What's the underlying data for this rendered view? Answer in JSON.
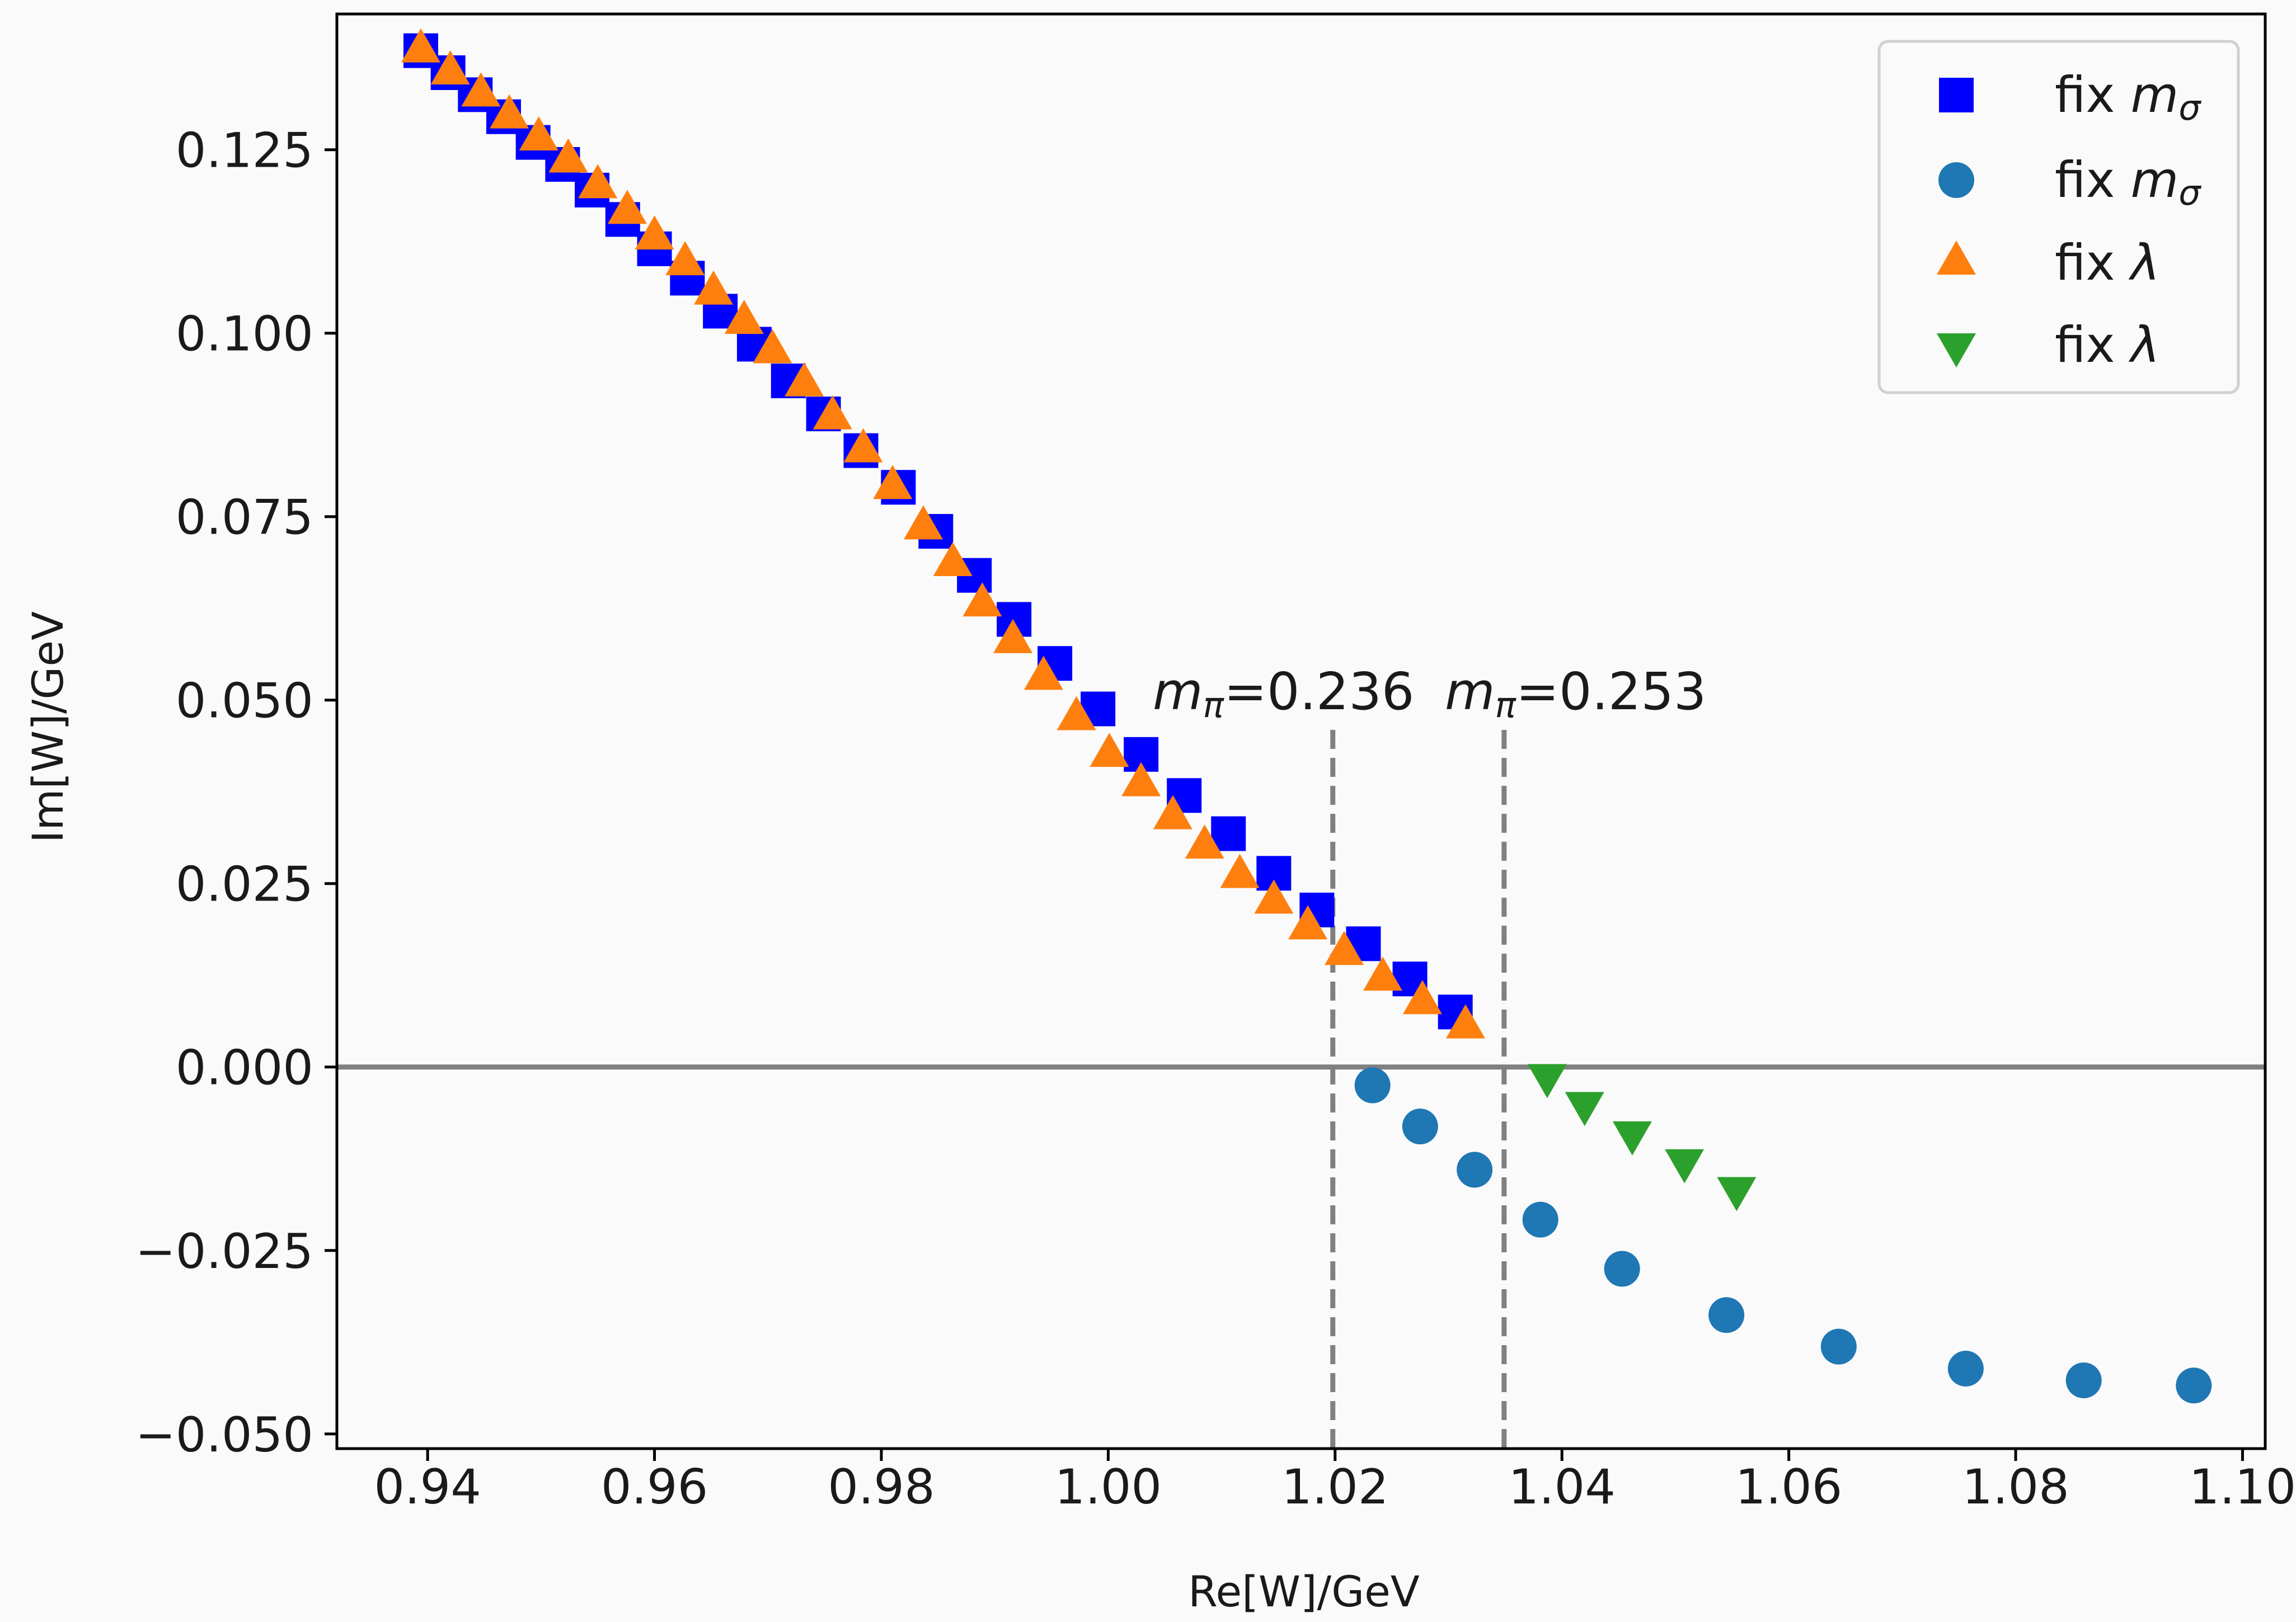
{
  "chart_data": {
    "type": "scatter",
    "xlabel": "Re[W]/GeV",
    "ylabel": "Im[W]/GeV",
    "xlim": [
      0.932,
      1.102
    ],
    "ylim": [
      -0.052,
      0.1435
    ],
    "xticks": [
      0.94,
      0.96,
      0.98,
      1.0,
      1.02,
      1.04,
      1.06,
      1.08,
      1.1
    ],
    "xtick_labels": [
      "0.94",
      "0.96",
      "0.98",
      "1.00",
      "1.02",
      "1.04",
      "1.06",
      "1.08",
      "1.10"
    ],
    "yticks": [
      0.125,
      0.1,
      0.075,
      0.05,
      0.025,
      0.0,
      -0.025,
      -0.05
    ],
    "ytick_labels": [
      "0.125",
      "0.100",
      "0.075",
      "0.050",
      "0.025",
      "0.000",
      "−0.025",
      "−0.050"
    ],
    "grid": false,
    "legend_position": "top-right",
    "hline": {
      "y": 0.0,
      "color": "#808080"
    },
    "vlines": [
      {
        "x": 1.0198,
        "label_sym": "m",
        "label_sub": "π",
        "label_val": "=0.236"
      },
      {
        "x": 1.0349,
        "label_sym": "m",
        "label_sub": "π",
        "label_val": "=0.253"
      }
    ],
    "series": [
      {
        "name_text": "fix ",
        "name_sym": "m",
        "name_sub": "σ",
        "marker": "square",
        "color": "#0000ff",
        "points": [
          [
            0.9394,
            0.1385
          ],
          [
            0.9418,
            0.1355
          ],
          [
            0.9442,
            0.1325
          ],
          [
            0.9467,
            0.1295
          ],
          [
            0.9493,
            0.126
          ],
          [
            0.9519,
            0.123
          ],
          [
            0.9545,
            0.1195
          ],
          [
            0.9572,
            0.1155
          ],
          [
            0.96,
            0.1115
          ],
          [
            0.9629,
            0.1075
          ],
          [
            0.9658,
            0.103
          ],
          [
            0.9688,
            0.0985
          ],
          [
            0.9718,
            0.0935
          ],
          [
            0.9749,
            0.089
          ],
          [
            0.9782,
            0.084
          ],
          [
            0.9815,
            0.079
          ],
          [
            0.9848,
            0.073
          ],
          [
            0.9882,
            0.067
          ],
          [
            0.9917,
            0.061
          ],
          [
            0.9953,
            0.055
          ],
          [
            0.9991,
            0.0488
          ],
          [
            1.0029,
            0.0426
          ],
          [
            1.0067,
            0.037
          ],
          [
            1.0106,
            0.0318
          ],
          [
            1.0146,
            0.0264
          ],
          [
            1.0184,
            0.0214
          ],
          [
            1.0225,
            0.0168
          ],
          [
            1.0266,
            0.012
          ],
          [
            1.0306,
            0.0075
          ]
        ]
      },
      {
        "name_text": "fix ",
        "name_sym": "m",
        "name_sub": "σ",
        "marker": "circle",
        "color": "#1f77b4",
        "points": [
          [
            1.0233,
            -0.0025
          ],
          [
            1.0275,
            -0.0081
          ],
          [
            1.0323,
            -0.014
          ],
          [
            1.0381,
            -0.0208
          ],
          [
            1.0453,
            -0.0275
          ],
          [
            1.0545,
            -0.0338
          ],
          [
            1.0644,
            -0.0381
          ],
          [
            1.0756,
            -0.0411
          ],
          [
            1.086,
            -0.0427
          ],
          [
            1.0957,
            -0.0434
          ]
        ]
      },
      {
        "name_text": "fix ",
        "name_sym": "λ",
        "name_sub": "",
        "marker": "triangle-up",
        "color": "#ff7f0e",
        "points": [
          [
            0.9394,
            0.1385
          ],
          [
            0.942,
            0.1355
          ],
          [
            0.9447,
            0.1325
          ],
          [
            0.9472,
            0.1295
          ],
          [
            0.9498,
            0.1265
          ],
          [
            0.9524,
            0.1235
          ],
          [
            0.955,
            0.12
          ],
          [
            0.9576,
            0.1165
          ],
          [
            0.96,
            0.113
          ],
          [
            0.9627,
            0.1095
          ],
          [
            0.9652,
            0.1055
          ],
          [
            0.9679,
            0.1015
          ],
          [
            0.9704,
            0.0975
          ],
          [
            0.9732,
            0.093
          ],
          [
            0.9757,
            0.0885
          ],
          [
            0.9784,
            0.084
          ],
          [
            0.981,
            0.079
          ],
          [
            0.9837,
            0.0735
          ],
          [
            0.9863,
            0.0685
          ],
          [
            0.9889,
            0.063
          ],
          [
            0.9916,
            0.058
          ],
          [
            0.9943,
            0.053
          ],
          [
            0.9972,
            0.0475
          ],
          [
            1.0001,
            0.0425
          ],
          [
            1.0029,
            0.0385
          ],
          [
            1.0057,
            0.034
          ],
          [
            1.0085,
            0.03
          ],
          [
            1.0116,
            0.026
          ],
          [
            1.0146,
            0.0225
          ],
          [
            1.0176,
            0.019
          ],
          [
            1.0208,
            0.0155
          ],
          [
            1.0242,
            0.012
          ],
          [
            1.0277,
            0.0088
          ],
          [
            1.0315,
            0.0055
          ]
        ]
      },
      {
        "name_text": "fix ",
        "name_sym": "λ",
        "name_sub": "",
        "marker": "triangle-down",
        "color": "#2ca02c",
        "points": [
          [
            1.0387,
            -0.0012
          ],
          [
            1.042,
            -0.005
          ],
          [
            1.0462,
            -0.009
          ],
          [
            1.0508,
            -0.0128
          ],
          [
            1.0554,
            -0.0166
          ]
        ]
      }
    ]
  }
}
